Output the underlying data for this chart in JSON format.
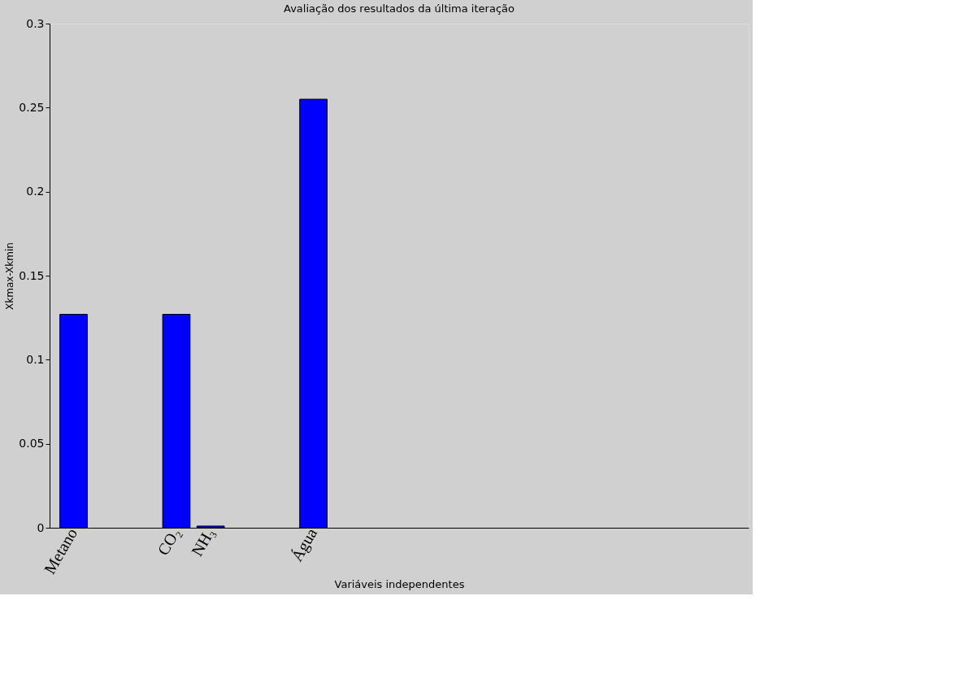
{
  "chart_data": {
    "type": "bar",
    "title": "Avaliação dos resultados da última iteração",
    "xlabel": "Variáveis independentes",
    "ylabel": "Xkmax-Xkmin",
    "categories": [
      "Metano",
      null,
      null,
      "CO₂",
      "NH₃",
      null,
      null,
      "Água",
      null,
      null,
      null,
      null,
      null,
      null,
      null,
      null,
      null,
      null,
      null,
      null
    ],
    "series": [
      {
        "color": "#0000ff",
        "values": [
          0.127,
          null,
          null,
          0.127,
          0.001,
          null,
          null,
          0.255,
          null,
          null,
          null,
          null,
          null,
          null,
          null,
          null,
          null,
          null,
          null,
          null
        ]
      }
    ],
    "ylim": [
      0,
      0.3
    ],
    "yticks": [
      0,
      0.05,
      0.1,
      0.15,
      0.2,
      0.25,
      0.3
    ],
    "grid": false
  }
}
